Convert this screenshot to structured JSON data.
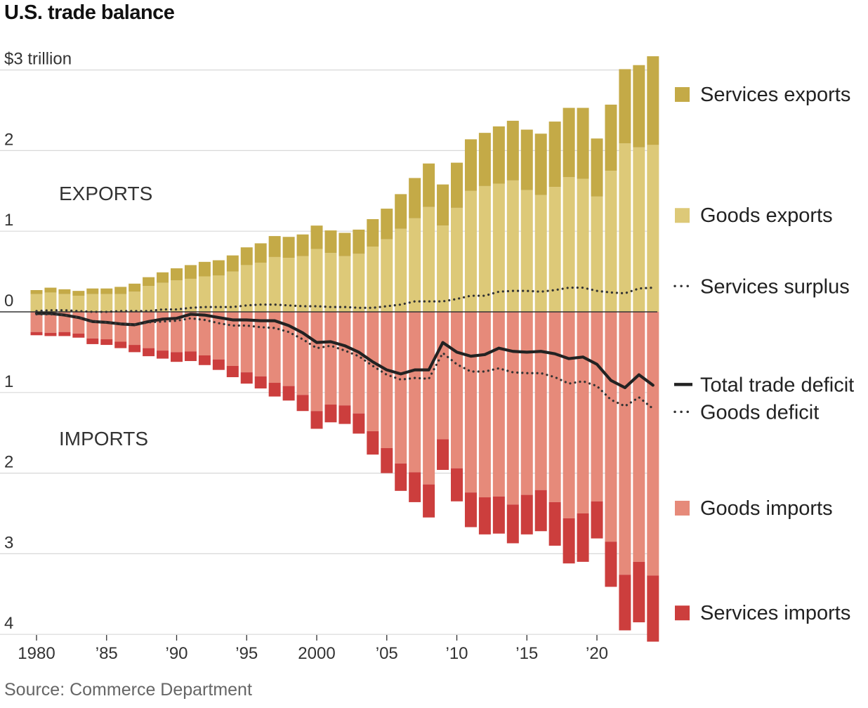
{
  "title": "U.S. trade balance",
  "source": "Source: Commerce Department",
  "chart_data": {
    "type": "bar",
    "title": "U.S. trade balance",
    "x": [
      1980,
      1981,
      1982,
      1983,
      1984,
      1985,
      1986,
      1987,
      1988,
      1989,
      1990,
      1991,
      1992,
      1993,
      1994,
      1995,
      1996,
      1997,
      1998,
      1999,
      2000,
      2001,
      2002,
      2003,
      2004,
      2005,
      2006,
      2007,
      2008,
      2009,
      2010,
      2011,
      2012,
      2013,
      2014,
      2015,
      2016,
      2017,
      2018,
      2019,
      2020,
      2021,
      2022,
      2023,
      2024
    ],
    "x_tick_labels": [
      {
        "x": 1980,
        "label": "1980"
      },
      {
        "x": 1985,
        "label": "’85"
      },
      {
        "x": 1990,
        "label": "’90"
      },
      {
        "x": 1995,
        "label": "’95"
      },
      {
        "x": 2000,
        "label": "2000"
      },
      {
        "x": 2005,
        "label": "’05"
      },
      {
        "x": 2010,
        "label": "’10"
      },
      {
        "x": 2015,
        "label": "’15"
      },
      {
        "x": 2020,
        "label": "’20"
      }
    ],
    "y_tick_labels": [
      {
        "y": 3,
        "label": "$3 trillion"
      },
      {
        "y": 2,
        "label": "2"
      },
      {
        "y": 1,
        "label": "1"
      },
      {
        "y": 0,
        "label": "0"
      },
      {
        "y": -1,
        "label": "1"
      },
      {
        "y": -2,
        "label": "2"
      },
      {
        "y": -3,
        "label": "3"
      },
      {
        "y": -4,
        "label": "4"
      }
    ],
    "ylim": [
      -4.1,
      3.2
    ],
    "unit": "trillions of dollars",
    "region_labels": {
      "exports": "EXPORTS",
      "imports": "IMPORTS"
    },
    "series": [
      {
        "name": "Services exports",
        "kind": "bar",
        "stack": "exports",
        "color": "#c4aa47",
        "values": [
          0.05,
          0.06,
          0.06,
          0.06,
          0.07,
          0.07,
          0.09,
          0.1,
          0.11,
          0.13,
          0.15,
          0.17,
          0.18,
          0.19,
          0.2,
          0.22,
          0.24,
          0.26,
          0.26,
          0.27,
          0.29,
          0.28,
          0.29,
          0.3,
          0.34,
          0.38,
          0.43,
          0.5,
          0.54,
          0.51,
          0.56,
          0.64,
          0.66,
          0.71,
          0.74,
          0.75,
          0.76,
          0.81,
          0.86,
          0.88,
          0.72,
          0.82,
          0.92,
          1.02,
          1.1
        ]
      },
      {
        "name": "Goods exports",
        "kind": "bar",
        "stack": "exports",
        "color": "#ddc978",
        "values": [
          0.22,
          0.24,
          0.22,
          0.2,
          0.22,
          0.22,
          0.22,
          0.25,
          0.32,
          0.36,
          0.39,
          0.41,
          0.44,
          0.45,
          0.5,
          0.58,
          0.61,
          0.68,
          0.67,
          0.69,
          0.78,
          0.73,
          0.69,
          0.72,
          0.81,
          0.9,
          1.03,
          1.16,
          1.3,
          1.07,
          1.29,
          1.5,
          1.56,
          1.59,
          1.63,
          1.51,
          1.45,
          1.55,
          1.67,
          1.65,
          1.43,
          1.75,
          2.09,
          2.04,
          2.07
        ]
      },
      {
        "name": "Goods imports",
        "kind": "bar",
        "stack": "imports",
        "color": "#e68a7a",
        "values": [
          0.25,
          0.26,
          0.25,
          0.27,
          0.33,
          0.34,
          0.37,
          0.41,
          0.45,
          0.48,
          0.5,
          0.49,
          0.54,
          0.59,
          0.67,
          0.75,
          0.8,
          0.88,
          0.92,
          1.03,
          1.23,
          1.15,
          1.16,
          1.26,
          1.48,
          1.69,
          1.88,
          1.99,
          2.14,
          1.58,
          1.94,
          2.24,
          2.3,
          2.29,
          2.39,
          2.27,
          2.21,
          2.36,
          2.56,
          2.5,
          2.35,
          2.85,
          3.26,
          3.1,
          3.27
        ]
      },
      {
        "name": "Services imports",
        "kind": "bar",
        "stack": "imports",
        "color": "#cc3e3d",
        "values": [
          0.04,
          0.04,
          0.05,
          0.05,
          0.07,
          0.07,
          0.08,
          0.09,
          0.1,
          0.1,
          0.12,
          0.12,
          0.12,
          0.13,
          0.14,
          0.14,
          0.15,
          0.17,
          0.18,
          0.2,
          0.22,
          0.22,
          0.23,
          0.25,
          0.29,
          0.31,
          0.34,
          0.37,
          0.41,
          0.38,
          0.41,
          0.43,
          0.46,
          0.46,
          0.48,
          0.49,
          0.51,
          0.54,
          0.56,
          0.6,
          0.46,
          0.56,
          0.69,
          0.75,
          0.82
        ]
      },
      {
        "name": "Services surplus",
        "kind": "line",
        "style": "dotted",
        "color": "#333333",
        "values": [
          0.01,
          0.02,
          0.02,
          0.01,
          0.0,
          0.0,
          0.01,
          0.01,
          0.01,
          0.03,
          0.03,
          0.05,
          0.06,
          0.06,
          0.06,
          0.08,
          0.09,
          0.09,
          0.08,
          0.07,
          0.07,
          0.06,
          0.06,
          0.05,
          0.05,
          0.07,
          0.09,
          0.13,
          0.13,
          0.13,
          0.16,
          0.2,
          0.2,
          0.25,
          0.26,
          0.26,
          0.25,
          0.27,
          0.3,
          0.3,
          0.26,
          0.24,
          0.23,
          0.29,
          0.3
        ]
      },
      {
        "name": "Total trade deficit",
        "kind": "line",
        "style": "solid",
        "color": "#222222",
        "values": [
          -0.02,
          -0.02,
          -0.04,
          -0.07,
          -0.12,
          -0.13,
          -0.15,
          -0.16,
          -0.12,
          -0.09,
          -0.08,
          -0.03,
          -0.04,
          -0.07,
          -0.1,
          -0.1,
          -0.11,
          -0.11,
          -0.17,
          -0.26,
          -0.38,
          -0.37,
          -0.42,
          -0.5,
          -0.62,
          -0.72,
          -0.77,
          -0.72,
          -0.72,
          -0.38,
          -0.5,
          -0.55,
          -0.53,
          -0.45,
          -0.49,
          -0.5,
          -0.49,
          -0.52,
          -0.58,
          -0.56,
          -0.65,
          -0.85,
          -0.94,
          -0.78,
          -0.91
        ]
      },
      {
        "name": "Goods deficit",
        "kind": "line",
        "style": "dotted",
        "color": "#333333",
        "values": [
          -0.03,
          -0.03,
          -0.04,
          -0.07,
          -0.12,
          -0.13,
          -0.15,
          -0.16,
          -0.13,
          -0.12,
          -0.11,
          -0.08,
          -0.1,
          -0.14,
          -0.17,
          -0.17,
          -0.19,
          -0.2,
          -0.25,
          -0.34,
          -0.45,
          -0.42,
          -0.48,
          -0.55,
          -0.67,
          -0.78,
          -0.84,
          -0.82,
          -0.83,
          -0.51,
          -0.65,
          -0.74,
          -0.74,
          -0.7,
          -0.75,
          -0.76,
          -0.76,
          -0.81,
          -0.89,
          -0.86,
          -0.92,
          -1.09,
          -1.17,
          -1.06,
          -1.2
        ]
      }
    ],
    "legend": {
      "placement": "right",
      "items": [
        {
          "name": "Services exports",
          "marker": "square",
          "color": "#c4aa47",
          "y": 2.7
        },
        {
          "name": "Goods exports",
          "marker": "square",
          "color": "#ddc978",
          "y": 1.2
        },
        {
          "name": "Services surplus",
          "marker": "dotted-line",
          "color": "#333333",
          "y": 0.32
        },
        {
          "name": "Total trade deficit",
          "marker": "solid-line",
          "color": "#222222",
          "y": -0.9
        },
        {
          "name": "Goods deficit",
          "marker": "dotted-line",
          "color": "#333333",
          "y": -1.24
        },
        {
          "name": "Goods imports",
          "marker": "square",
          "color": "#e68a7a",
          "y": -2.43
        },
        {
          "name": "Services imports",
          "marker": "square",
          "color": "#cc3e3d",
          "y": -3.73
        }
      ]
    },
    "grid": true
  }
}
